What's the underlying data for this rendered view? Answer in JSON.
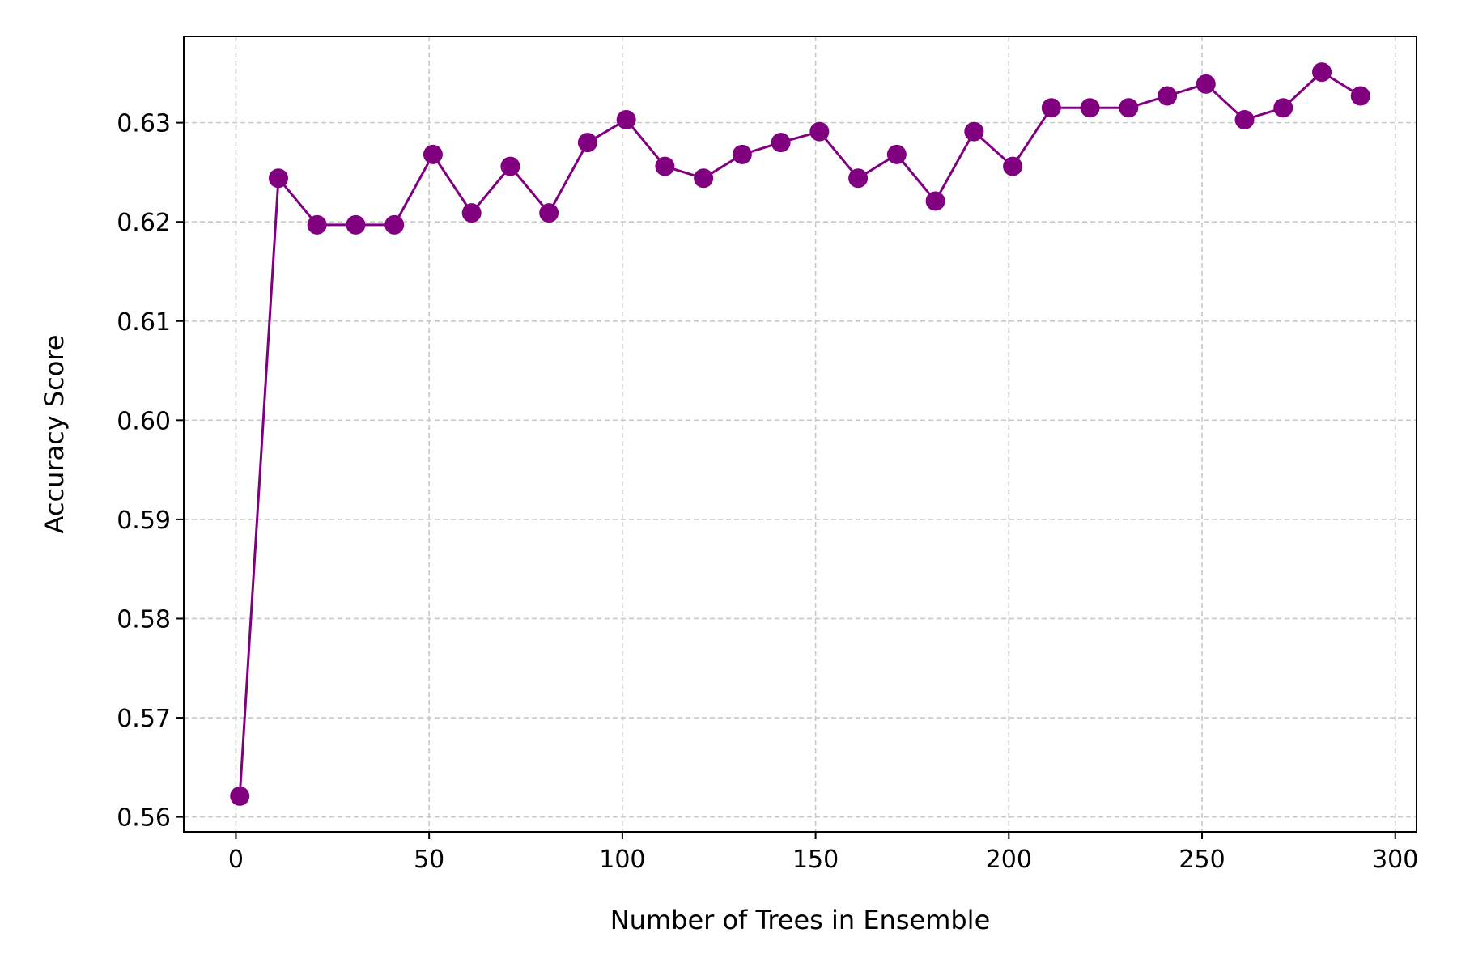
{
  "chart_data": {
    "type": "line",
    "title": "",
    "xlabel": "Number of Trees in Ensemble",
    "ylabel": "Accuracy Score",
    "xlim": [
      -13.5,
      305.5
    ],
    "ylim": [
      0.5585,
      0.6387
    ],
    "xticks": [
      0,
      50,
      100,
      150,
      200,
      250,
      300
    ],
    "xtick_labels": [
      "0",
      "50",
      "100",
      "150",
      "200",
      "250",
      "300"
    ],
    "yticks": [
      0.56,
      0.57,
      0.58,
      0.59,
      0.6,
      0.61,
      0.62,
      0.63
    ],
    "ytick_labels": [
      "0.56",
      "0.57",
      "0.58",
      "0.59",
      "0.60",
      "0.61",
      "0.62",
      "0.63"
    ],
    "grid": true,
    "grid_style": "dashed",
    "legend": "none",
    "series": [
      {
        "color": "#800080",
        "marker": "circle",
        "x": [
          1,
          11,
          21,
          31,
          41,
          51,
          61,
          71,
          81,
          91,
          101,
          111,
          121,
          131,
          141,
          151,
          161,
          171,
          181,
          191,
          201,
          211,
          221,
          231,
          241,
          251,
          261,
          271,
          281,
          291
        ],
        "y": [
          0.5621,
          0.6244,
          0.6197,
          0.6197,
          0.6197,
          0.6268,
          0.6209,
          0.6256,
          0.6209,
          0.628,
          0.6303,
          0.6256,
          0.6244,
          0.6268,
          0.628,
          0.6291,
          0.6244,
          0.6268,
          0.6221,
          0.6291,
          0.6256,
          0.6315,
          0.6315,
          0.6315,
          0.6327,
          0.6339,
          0.6303,
          0.6315,
          0.6351,
          0.6327
        ]
      }
    ]
  }
}
